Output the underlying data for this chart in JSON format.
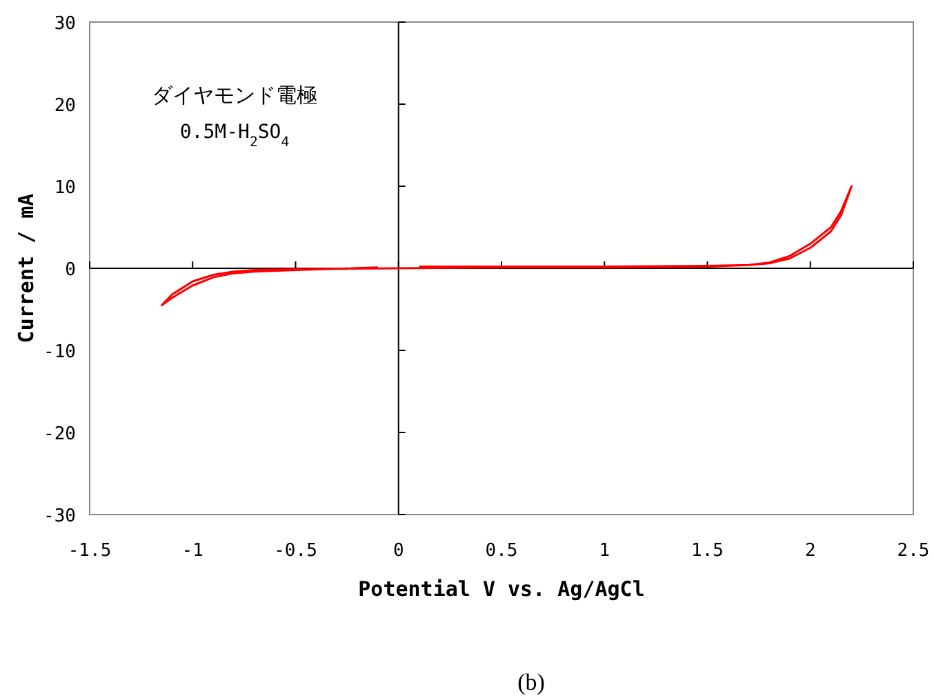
{
  "chart_data": {
    "type": "line",
    "xlabel": "Potential V vs. Ag/AgCl",
    "ylabel": "Current / mA",
    "annotations": [
      "ダイヤモンド電極",
      "0.5M-H$_{2}$SO$_{4}$",
      "(b)"
    ],
    "xlim": [
      -1.5,
      2.5
    ],
    "xticks": [
      -1.5,
      -1,
      -0.5,
      0,
      0.5,
      1,
      1.5,
      2,
      2.5
    ],
    "ylim": [
      -30,
      30
    ],
    "yticks": [
      -30,
      -20,
      -10,
      0,
      10,
      20,
      30
    ],
    "marker": "none",
    "line_style": "solid",
    "series": [
      {
        "color": "#ff0000",
        "x": [
          0.1,
          0.5,
          1,
          1.5,
          1.7,
          1.8,
          1.9,
          2.0,
          2.1,
          2.15,
          2.2,
          2.15,
          2.1,
          2.0,
          1.9,
          1.8,
          1.7,
          1.5,
          1,
          0.5,
          -0.5,
          -0.7,
          -0.8,
          -0.9,
          -1.0,
          -1.1,
          -1.15,
          -1.1,
          -1.0,
          -0.9,
          -0.8,
          -0.7,
          -0.5,
          -0.1
        ],
        "values": [
          0.2,
          0.2,
          0.2,
          0.3,
          0.4,
          0.6,
          1.2,
          2.5,
          4.5,
          6.5,
          10,
          7,
          5,
          3,
          1.5,
          0.7,
          0.4,
          0.2,
          0.1,
          0.1,
          -0.1,
          -0.2,
          -0.4,
          -0.8,
          -1.6,
          -3.2,
          -4.5,
          -3.6,
          -2.1,
          -1.1,
          -0.6,
          -0.4,
          -0.2,
          0.1
        ]
      }
    ]
  }
}
